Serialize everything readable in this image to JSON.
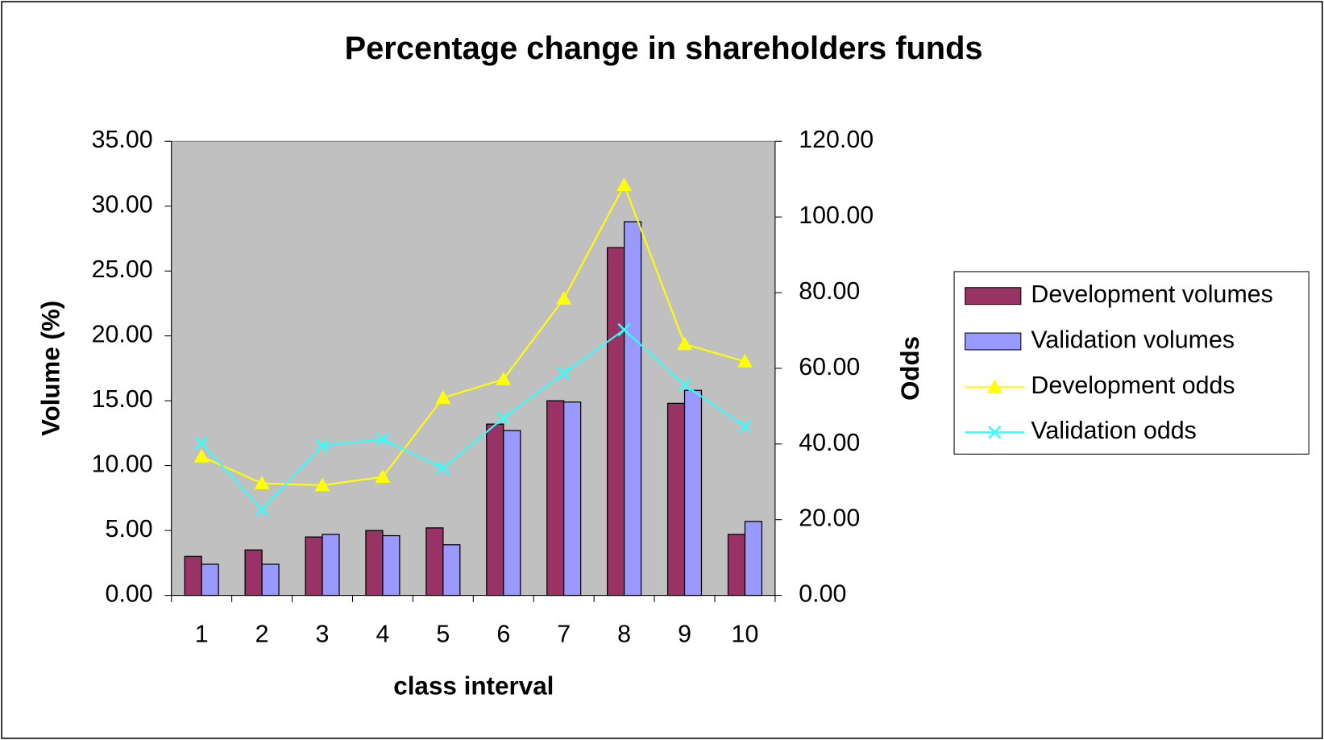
{
  "chart_data": {
    "type": "bar-line",
    "title": "Percentage change in shareholders funds",
    "x_label": "class interval",
    "y_label": "Volume (%)",
    "y2_label": "Odds",
    "categories": [
      "1",
      "2",
      "3",
      "4",
      "5",
      "6",
      "7",
      "8",
      "9",
      "10"
    ],
    "series": [
      {
        "name": "Development volumes",
        "type": "bar",
        "color": "#993366",
        "values": [
          3.0,
          3.5,
          4.5,
          5.0,
          5.2,
          13.2,
          15.0,
          26.8,
          14.8,
          4.7
        ]
      },
      {
        "name": "Validation volumes",
        "type": "bar",
        "color": "#9999ff",
        "values": [
          2.4,
          2.4,
          4.7,
          4.6,
          3.9,
          12.7,
          14.9,
          28.8,
          15.8,
          5.7
        ]
      },
      {
        "name": "Development odds",
        "type": "line",
        "marker": "triangle",
        "axis": "y2",
        "color": "#ffff00",
        "values": [
          36.7,
          29.6,
          29.1,
          31.3,
          52.2,
          57.1,
          78.4,
          108.4,
          66.4,
          61.8
        ]
      },
      {
        "name": "Validation odds",
        "type": "line",
        "marker": "x",
        "axis": "y2",
        "color": "#33ffff",
        "values": [
          40.2,
          22.7,
          39.6,
          41.3,
          33.6,
          46.9,
          58.7,
          70.2,
          55.6,
          44.7
        ]
      }
    ],
    "ylim": [
      0,
      35
    ],
    "yticks": [
      {
        "value": 0,
        "label": "0.00"
      },
      {
        "value": 5,
        "label": "5.00"
      },
      {
        "value": 10,
        "label": "10.00"
      },
      {
        "value": 15,
        "label": "15.00"
      },
      {
        "value": 20,
        "label": "20.00"
      },
      {
        "value": 25,
        "label": "25.00"
      },
      {
        "value": 30,
        "label": "30.00"
      },
      {
        "value": 35,
        "label": "35.00"
      }
    ],
    "y2lim": [
      0,
      120
    ],
    "y2ticks": [
      {
        "value": 0,
        "label": "0.00"
      },
      {
        "value": 20,
        "label": "20.00"
      },
      {
        "value": 40,
        "label": "40.00"
      },
      {
        "value": 60,
        "label": "60.00"
      },
      {
        "value": 80,
        "label": "80.00"
      },
      {
        "value": 100,
        "label": "100.00"
      },
      {
        "value": 120,
        "label": "120.00"
      }
    ],
    "plot_background": "#c0c0c0",
    "legend": "right"
  }
}
